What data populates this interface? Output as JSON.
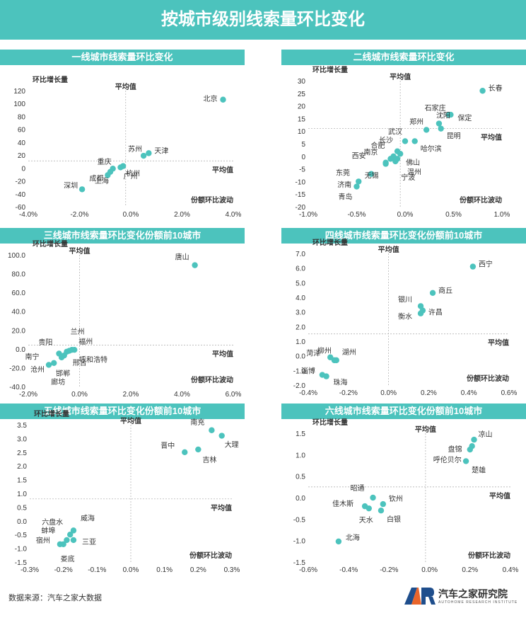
{
  "title": "按城市级别线索量环比变化",
  "source": "数据来源：汽车之家大数据",
  "logo": {
    "mark": "AR",
    "name": "汽车之家研究院",
    "sub": "AUTOHOME RESEARCH INSTITUTE"
  },
  "colors": {
    "accent": "#4cc3bd",
    "point": "#4cc3bd",
    "refline": "#b5b5b5"
  },
  "chart_data": [
    {
      "type": "scatter",
      "title": "一线城市线索量环比变化",
      "ylabel": "环比增长量",
      "xlabel": "份额环比波动",
      "avg_x_label": "平均值",
      "avg_y_label": "平均值",
      "xlim": [
        -4,
        4
      ],
      "ylim": [
        -60,
        120
      ],
      "xticks": [
        -4,
        -2,
        0,
        2,
        4
      ],
      "yticks": [
        -60,
        -40,
        -20,
        0,
        20,
        40,
        60,
        80,
        100,
        120
      ],
      "xtick_labels": [
        "-4.0%",
        "-2.0%",
        "0.0%",
        "2.0%",
        "4.0%"
      ],
      "ytick_labels": [
        "-60",
        "-40",
        "-20",
        "0",
        "20",
        "40",
        "60",
        "80",
        "100",
        "120"
      ],
      "avg_x": -0.2,
      "avg_y": 11,
      "points": [
        {
          "label": "北京",
          "x": 3.6,
          "y": 106
        },
        {
          "label": "天津",
          "x": 0.7,
          "y": 23
        },
        {
          "label": "苏州",
          "x": 0.5,
          "y": 19
        },
        {
          "label": "杭州",
          "x": -0.3,
          "y": 3
        },
        {
          "label": "广州",
          "x": -0.4,
          "y": 1
        },
        {
          "label": "重庆",
          "x": -0.7,
          "y": -1
        },
        {
          "label": "上海",
          "x": -0.8,
          "y": -6
        },
        {
          "label": "成都",
          "x": -0.9,
          "y": -11
        },
        {
          "label": "深圳",
          "x": -1.9,
          "y": -33
        }
      ]
    },
    {
      "type": "scatter",
      "title": "二线城市线索量环比变化",
      "ylabel": "环比增长量",
      "xlabel": "份额环比波动",
      "avg_x_label": "平均值",
      "avg_y_label": "平均值",
      "xlim": [
        -1,
        1
      ],
      "ylim": [
        -20,
        30
      ],
      "xticks": [
        -1,
        -0.5,
        0,
        0.5,
        1
      ],
      "yticks": [
        -20,
        -15,
        -10,
        -5,
        0,
        5,
        10,
        15,
        20,
        25,
        30
      ],
      "xtick_labels": [
        "-1.0%",
        "-0.5%",
        "0.0%",
        "0.5%",
        "1.0%"
      ],
      "ytick_labels": [
        "-20",
        "-15",
        "-10",
        "-5",
        "0",
        "5",
        "10",
        "15",
        "20",
        "25",
        "30"
      ],
      "avg_x": -0.05,
      "avg_y": 11,
      "points": [
        {
          "label": "长春",
          "x": 0.8,
          "y": 26
        },
        {
          "label": "石家庄",
          "x": 0.45,
          "y": 16.5
        },
        {
          "label": "保定",
          "x": 0.47,
          "y": 16.5
        },
        {
          "label": "郑州",
          "x": 0.22,
          "y": 10.5
        },
        {
          "label": "沈阳",
          "x": 0.35,
          "y": 13
        },
        {
          "label": "昆明",
          "x": 0.37,
          "y": 11
        },
        {
          "label": "武汉",
          "x": 0.0,
          "y": 6
        },
        {
          "label": "哈尔滨",
          "x": 0.1,
          "y": 6
        },
        {
          "label": "长沙",
          "x": -0.08,
          "y": 2
        },
        {
          "label": "合肥",
          "x": -0.12,
          "y": 0
        },
        {
          "label": "南京",
          "x": -0.15,
          "y": -1
        },
        {
          "label": "佛山",
          "x": -0.05,
          "y": 1
        },
        {
          "label": "西安",
          "x": -0.2,
          "y": -2.5
        },
        {
          "label": "温州",
          "x": -0.08,
          "y": -1
        },
        {
          "label": "东莞",
          "x": -0.35,
          "y": -7
        },
        {
          "label": "无锡",
          "x": -0.2,
          "y": -3
        },
        {
          "label": "宁波",
          "x": -0.1,
          "y": -2
        },
        {
          "label": "济南",
          "x": -0.48,
          "y": -10
        },
        {
          "label": "青岛",
          "x": -0.5,
          "y": -12
        }
      ]
    },
    {
      "type": "scatter",
      "title": "三线城市线索量环比变化份额前10城市",
      "ylabel": "环比增长量",
      "xlabel": "份额环比波动",
      "avg_x_label": "平均值",
      "avg_y_label": "平均值",
      "xlim": [
        -2,
        6
      ],
      "ylim": [
        -40,
        100
      ],
      "xticks": [
        -2,
        0,
        2,
        4,
        6
      ],
      "yticks": [
        -40,
        -20,
        0,
        20,
        40,
        60,
        80,
        100
      ],
      "xtick_labels": [
        "-2.0%",
        "0.0%",
        "2.0%",
        "4.0%",
        "6.0%"
      ],
      "ytick_labels": [
        "-40.0",
        "-20.0",
        "0.0",
        "20.0",
        "40.0",
        "60.0",
        "80.0",
        "100.0"
      ],
      "avg_x": 0.0,
      "avg_y": 4,
      "points": [
        {
          "label": "唐山",
          "x": 4.5,
          "y": 89
        },
        {
          "label": "兰州",
          "x": -0.3,
          "y": -1
        },
        {
          "label": "福州",
          "x": -0.2,
          "y": -1
        },
        {
          "label": "贵阳",
          "x": -0.5,
          "y": -3
        },
        {
          "label": "呼和浩特",
          "x": -0.4,
          "y": -2
        },
        {
          "label": "南宁",
          "x": -0.8,
          "y": -5
        },
        {
          "label": "邢台",
          "x": -0.6,
          "y": -7
        },
        {
          "label": "邯郸",
          "x": -0.7,
          "y": -9
        },
        {
          "label": "沧州",
          "x": -1.2,
          "y": -17
        },
        {
          "label": "廊坊",
          "x": -1.0,
          "y": -15
        }
      ]
    },
    {
      "type": "scatter",
      "title": "四线城市线索量环比变化份额前10城市",
      "ylabel": "环比增长量",
      "xlabel": "份额环比波动",
      "avg_x_label": "平均值",
      "avg_y_label": "平均值",
      "xlim": [
        -0.4,
        0.6
      ],
      "ylim": [
        -2,
        7
      ],
      "xticks": [
        -0.4,
        -0.2,
        0,
        0.2,
        0.4,
        0.6
      ],
      "yticks": [
        -2,
        -1,
        0,
        1,
        2,
        3,
        4,
        5,
        6,
        7
      ],
      "xtick_labels": [
        "-0.4%",
        "-0.2%",
        "0.0%",
        "0.2%",
        "0.4%",
        "0.6%"
      ],
      "ytick_labels": [
        "-2.0",
        "-1.0",
        "0.0",
        "1.0",
        "2.0",
        "3.0",
        "4.0",
        "5.0",
        "6.0",
        "7.0"
      ],
      "avg_x": 0.0,
      "avg_y": 1.5,
      "points": [
        {
          "label": "西宁",
          "x": 0.42,
          "y": 6.1
        },
        {
          "label": "商丘",
          "x": 0.22,
          "y": 4.3
        },
        {
          "label": "银川",
          "x": 0.16,
          "y": 3.4
        },
        {
          "label": "许昌",
          "x": 0.17,
          "y": 3.1
        },
        {
          "label": "衡水",
          "x": 0.16,
          "y": 2.9
        },
        {
          "label": "柳州",
          "x": -0.27,
          "y": -0.3
        },
        {
          "label": "湖州",
          "x": -0.26,
          "y": -0.3
        },
        {
          "label": "菏泽",
          "x": -0.29,
          "y": -0.1
        },
        {
          "label": "淄博",
          "x": -0.33,
          "y": -1.3
        },
        {
          "label": "珠海",
          "x": -0.31,
          "y": -1.4
        }
      ]
    },
    {
      "type": "scatter",
      "title": "五线城市线索量环比变化份额前10城市",
      "ylabel": "环比增长量",
      "xlabel": "份额环比波动",
      "avg_x_label": "平均值",
      "avg_y_label": "平均值",
      "xlim": [
        -0.3,
        0.3
      ],
      "ylim": [
        -1.5,
        3.5
      ],
      "xticks": [
        -0.3,
        -0.2,
        -0.1,
        0,
        0.1,
        0.2,
        0.3
      ],
      "yticks": [
        -1.5,
        -1,
        -0.5,
        0,
        0.5,
        1,
        1.5,
        2,
        2.5,
        3,
        3.5
      ],
      "xtick_labels": [
        "-0.3%",
        "-0.2%",
        "-0.1%",
        "0.0%",
        "0.1%",
        "0.2%",
        "0.3%"
      ],
      "ytick_labels": [
        "-1.5",
        "-1.0",
        "-0.5",
        "0.0",
        "0.5",
        "1.0",
        "1.5",
        "2.0",
        "2.5",
        "3.0",
        "3.5"
      ],
      "avg_x": 0.0,
      "avg_y": 0.8,
      "points": [
        {
          "label": "南充",
          "x": 0.24,
          "y": 3.3
        },
        {
          "label": "大理",
          "x": 0.27,
          "y": 3.1
        },
        {
          "label": "晋中",
          "x": 0.16,
          "y": 2.5
        },
        {
          "label": "吉林",
          "x": 0.2,
          "y": 2.6
        },
        {
          "label": "六盘水",
          "x": -0.18,
          "y": -0.5
        },
        {
          "label": "威海",
          "x": -0.17,
          "y": -0.35
        },
        {
          "label": "蚌埠",
          "x": -0.19,
          "y": -0.7
        },
        {
          "label": "三亚",
          "x": -0.17,
          "y": -0.7
        },
        {
          "label": "宿州",
          "x": -0.21,
          "y": -0.85
        },
        {
          "label": "娄底",
          "x": -0.2,
          "y": -0.85
        }
      ]
    },
    {
      "type": "scatter",
      "title": "六线城市线索量环比变化份额前10城市",
      "ylabel": "环比增长量",
      "xlabel": "份额环比波动",
      "avg_x_label": "平均值",
      "avg_y_label": "平均值",
      "xlim": [
        -0.6,
        0.4
      ],
      "ylim": [
        -1.5,
        1.5
      ],
      "xticks": [
        -0.6,
        -0.4,
        -0.2,
        0,
        0.2,
        0.4
      ],
      "yticks": [
        -1.5,
        -1,
        -0.5,
        0,
        0.5,
        1,
        1.5
      ],
      "xtick_labels": [
        "-0.6%",
        "-0.4%",
        "-0.2%",
        "0.0%",
        "0.2%",
        "0.4%"
      ],
      "ytick_labels": [
        "-1.5",
        "-1.0",
        "-0.5",
        "0.0",
        "0.5",
        "1.0",
        "1.5"
      ],
      "avg_x": -0.02,
      "avg_y": 0.25,
      "points": [
        {
          "label": "凉山",
          "x": 0.22,
          "y": 1.35
        },
        {
          "label": "盘锦",
          "x": 0.21,
          "y": 1.2
        },
        {
          "label": "呼伦贝尔",
          "x": 0.2,
          "y": 1.12
        },
        {
          "label": "楚雄",
          "x": 0.18,
          "y": 0.85
        },
        {
          "label": "昭通",
          "x": -0.28,
          "y": 0.0
        },
        {
          "label": "钦州",
          "x": -0.23,
          "y": -0.15
        },
        {
          "label": "佳木斯",
          "x": -0.32,
          "y": -0.2
        },
        {
          "label": "天水",
          "x": -0.3,
          "y": -0.25
        },
        {
          "label": "白银",
          "x": -0.24,
          "y": -0.3
        },
        {
          "label": "北海",
          "x": -0.45,
          "y": -1.02
        }
      ]
    }
  ]
}
